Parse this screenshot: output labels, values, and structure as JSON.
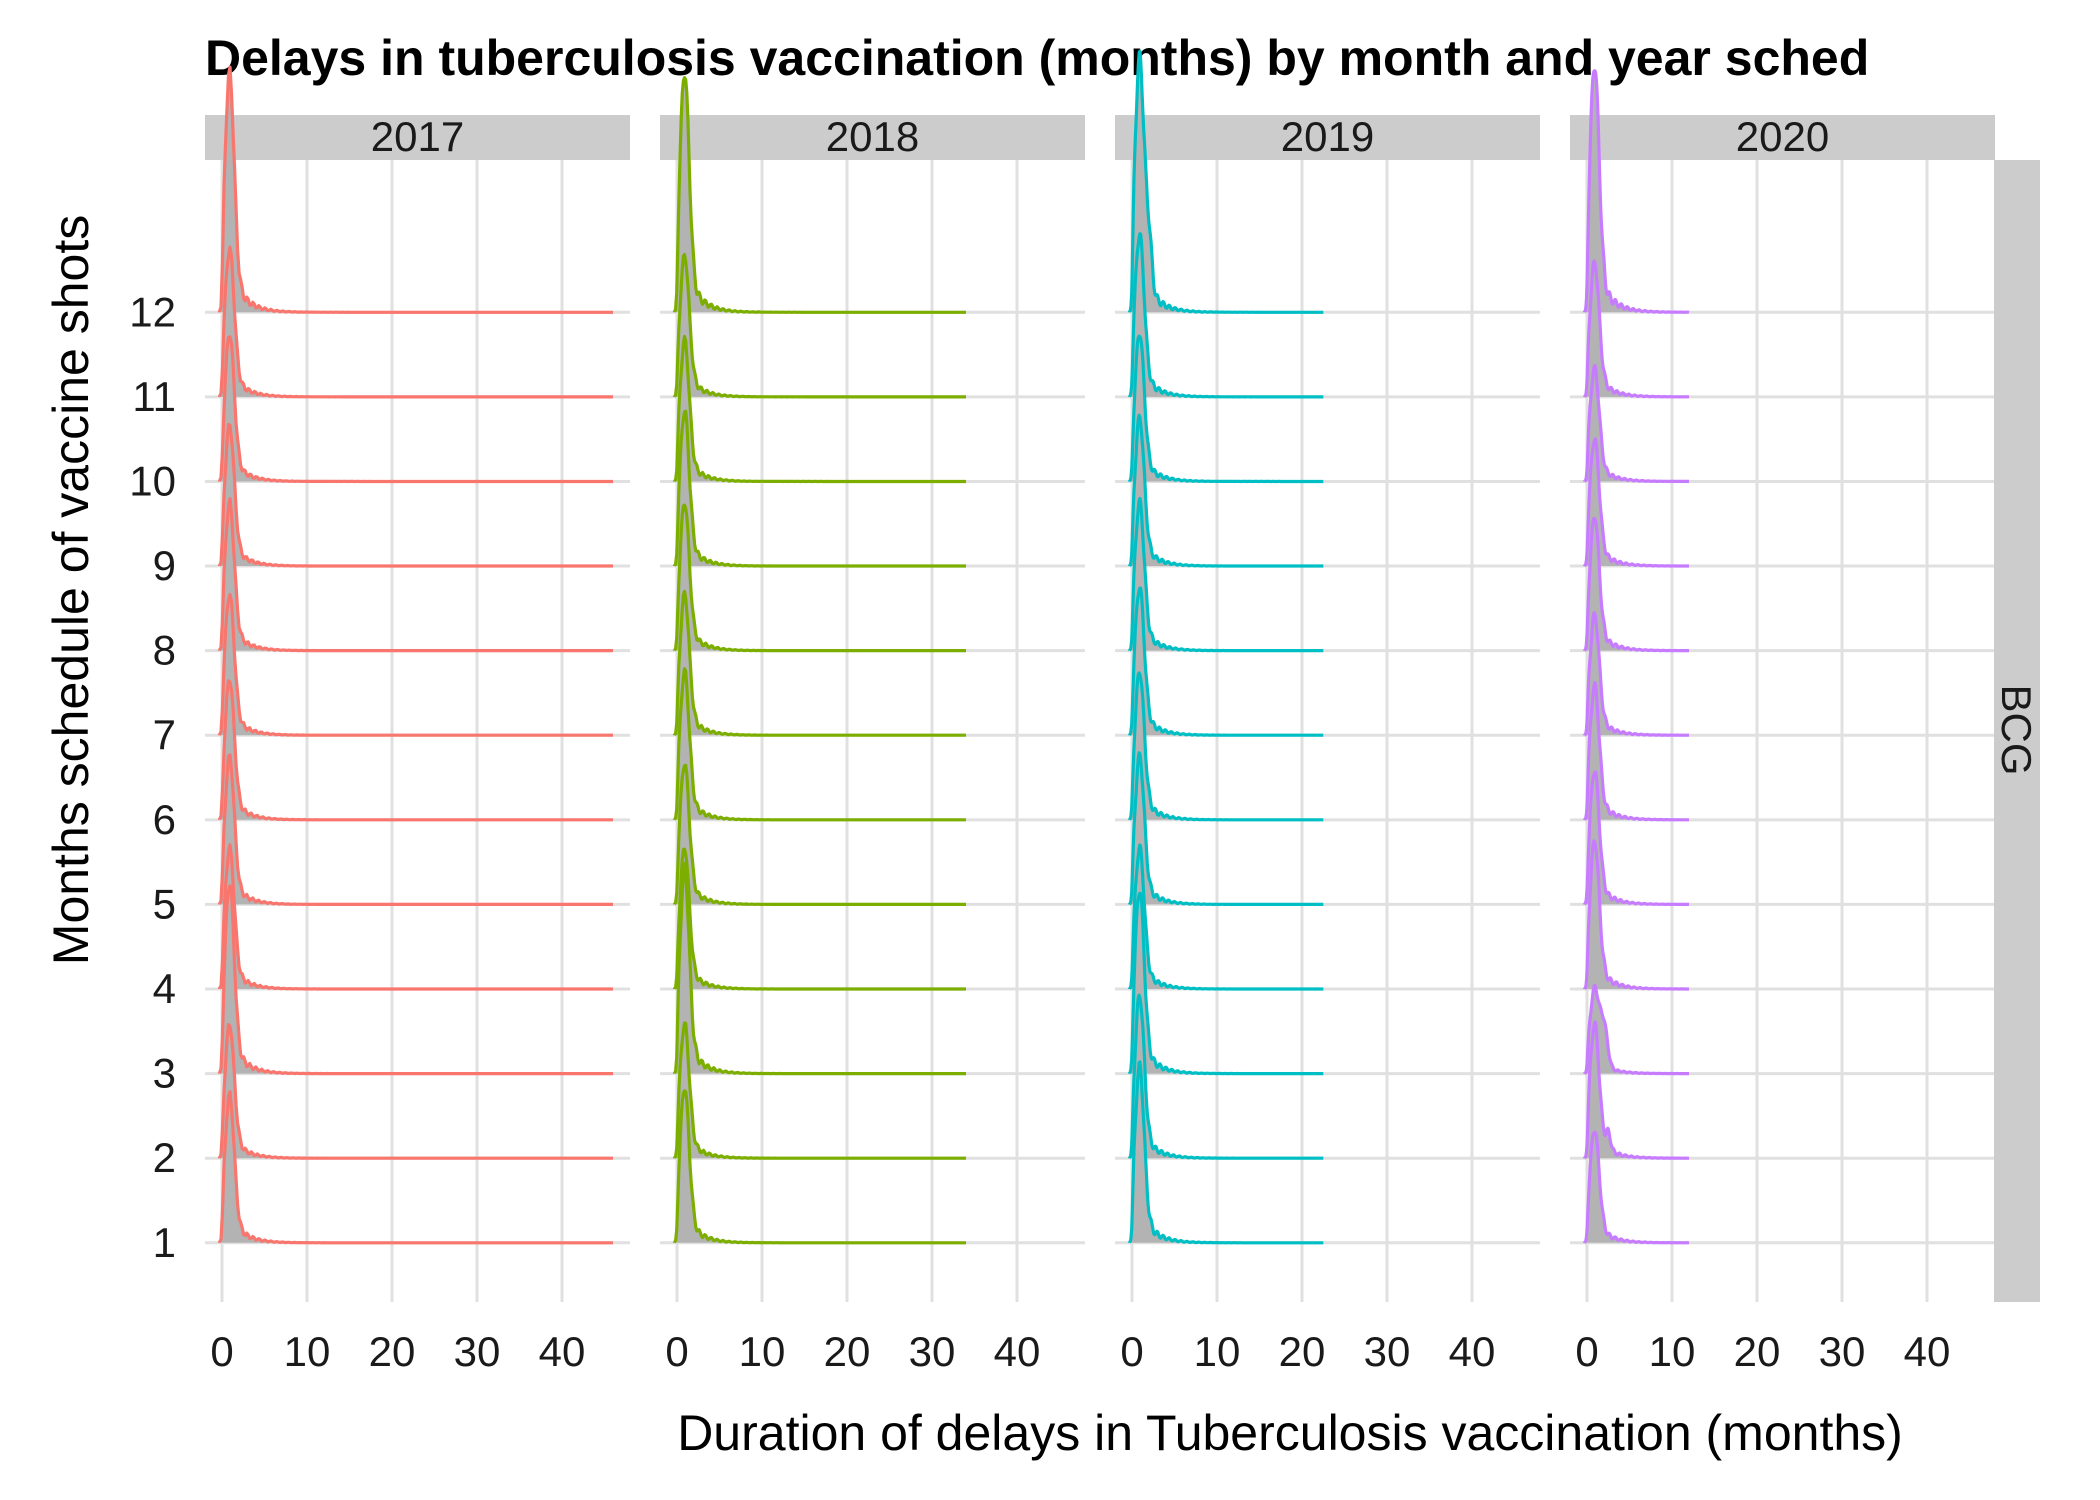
{
  "chart_data": {
    "type": "area",
    "subtype": "ridgeline-density",
    "title": "Delays in tuberculosis vaccination (months) by month and year sched",
    "xlabel": "Duration of delays in Tuberculosis vaccination (months)",
    "ylabel": "Months schedule of vaccine shots",
    "facet_row_label": "BCG",
    "x_ticks": [
      "0",
      "10",
      "20",
      "30",
      "40"
    ],
    "y_ticks": [
      "1",
      "2",
      "3",
      "4",
      "5",
      "6",
      "7",
      "8",
      "9",
      "10",
      "11",
      "12"
    ],
    "xlim": [
      -2,
      48
    ],
    "ylim": [
      0.3,
      13.8
    ],
    "grid": true,
    "legend": "none",
    "fill_color": "#b3b3b3",
    "panels": [
      {
        "name": "2017",
        "color": "#F8766D",
        "x_max": 46,
        "peaks": [
          1.05,
          0.95,
          1.35,
          1.0,
          1.05,
          1.0,
          1.0,
          1.05,
          1.0,
          1.05,
          1.05,
          1.7
        ]
      },
      {
        "name": "2018",
        "color": "#7CAE00",
        "x_max": 34,
        "peaks": [
          1.1,
          0.95,
          1.45,
          1.0,
          1.0,
          1.05,
          1.0,
          1.05,
          1.1,
          1.0,
          1.0,
          1.7
        ]
      },
      {
        "name": "2019",
        "color": "#00BFC4",
        "x_max": 22.5,
        "peaks": [
          1.25,
          1.15,
          1.3,
          1.0,
          1.05,
          1.05,
          1.05,
          1.05,
          1.05,
          1.05,
          1.15,
          1.8
        ]
      },
      {
        "name": "2020",
        "color": "#C77CFF",
        "x_max": 12,
        "peaks": [
          0.8,
          0.95,
          0.6,
          1.05,
          0.95,
          0.95,
          0.85,
          0.95,
          0.9,
          0.8,
          0.95,
          1.75
        ]
      }
    ]
  }
}
